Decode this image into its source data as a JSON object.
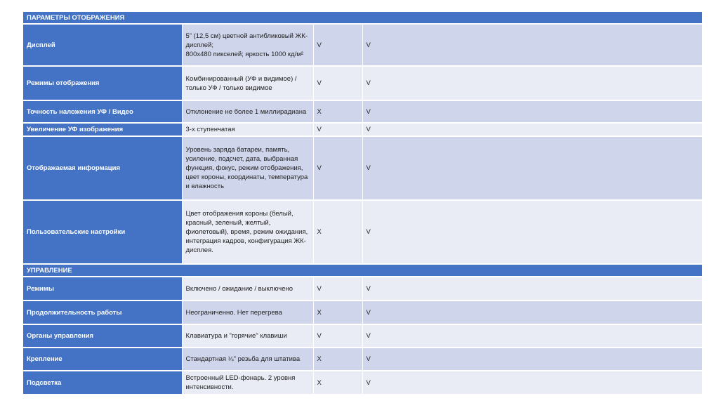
{
  "sections": [
    {
      "title": "ПАРАМЕТРЫ ОТОБРАЖЕНИЯ",
      "rows": [
        {
          "param": "Дисплей",
          "desc": "5” (12,5 см) цветной антибликовый ЖК-дисплей;\n800x480 пикселей; яркость 1000 кд/м²",
          "col3": "V",
          "col4": "V"
        },
        {
          "param": "Режимы отображения",
          "desc": "Комбинированный (УФ и видимое) / только УФ / только видимое",
          "col3": "V",
          "col4": "V"
        },
        {
          "param": "Точность наложения УФ / Видео",
          "desc": "Отклонение не более 1 миллирадиана",
          "col3": "X",
          "col4": "V"
        },
        {
          "param": "Увеличение УФ изображения",
          "desc": "3-х ступенчатая",
          "col3": "V",
          "col4": "V"
        },
        {
          "param": "Отображаемая информация",
          "desc": "Уровень заряда батареи, память, усиление, подсчет, дата, выбранная функция, фокус, режим отображения, цвет короны, координаты, температура и влажность",
          "col3": "V",
          "col4": "V"
        },
        {
          "param": "Пользовательские настройки",
          "desc": "Цвет отображения короны (белый, красный, зеленый, желтый, фиолетовый), время, режим ожидания, интеграция кадров, конфигурация ЖК-дисплея.",
          "col3": "X",
          "col4": "V"
        }
      ]
    },
    {
      "title": "УПРАВЛЕНИЕ",
      "rows": [
        {
          "param": "Режимы",
          "desc": "Включено / ожидание / выключено",
          "col3": "V",
          "col4": "V"
        },
        {
          "param": "Продолжительность работы",
          "desc": "Неограниченно. Нет перегрева",
          "col3": "X",
          "col4": "V"
        },
        {
          "param": "Органы управления",
          "desc": "Клавиатура и \"горячие\" клавиши",
          "col3": "V",
          "col4": "V"
        },
        {
          "param": "Крепление",
          "desc": "Стандартная ¼\"  резьба для штатива",
          "col3": "X",
          "col4": "V"
        },
        {
          "param": "Подсветка",
          "desc": "Встроенный LED-фонарь.  2 уровня интенсивности.",
          "col3": "X",
          "col4": "V"
        }
      ]
    }
  ],
  "colors": {
    "header": "#4472c4",
    "row_dark": "#cfd5ea",
    "row_light": "#e9ebf5"
  }
}
